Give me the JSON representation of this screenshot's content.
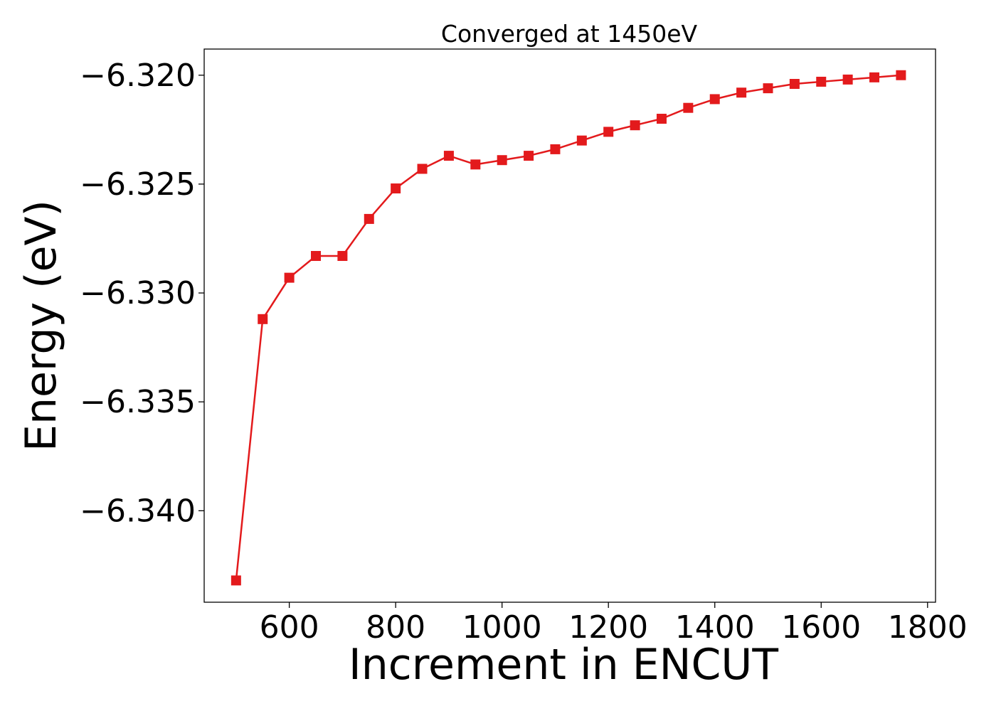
{
  "chart_data": {
    "type": "line",
    "title": "Converged at 1450eV",
    "xlabel": "Increment in ENCUT",
    "ylabel": "Energy (eV)",
    "xlim": [
      440,
      1815
    ],
    "ylim": [
      -6.3442,
      -6.3188
    ],
    "x_ticks": [
      600,
      800,
      1000,
      1200,
      1400,
      1600,
      1800
    ],
    "x_tick_labels": [
      "600",
      "800",
      "1000",
      "1200",
      "1400",
      "1600",
      "1800"
    ],
    "y_ticks": [
      -6.32,
      -6.325,
      -6.33,
      -6.335,
      -6.34
    ],
    "y_tick_labels": [
      "−6.320",
      "−6.325",
      "−6.330",
      "−6.335",
      "−6.340"
    ],
    "grid": false,
    "series": [
      {
        "color": "#e31a1c",
        "marker": "square",
        "x": [
          500,
          550,
          600,
          650,
          700,
          750,
          800,
          850,
          900,
          950,
          1000,
          1050,
          1100,
          1150,
          1200,
          1250,
          1300,
          1350,
          1400,
          1450,
          1500,
          1550,
          1600,
          1650,
          1700,
          1750
        ],
        "values": [
          -6.3432,
          -6.3312,
          -6.3293,
          -6.3283,
          -6.3283,
          -6.3266,
          -6.3252,
          -6.3243,
          -6.3237,
          -6.3241,
          -6.3239,
          -6.3237,
          -6.3234,
          -6.323,
          -6.3226,
          -6.3223,
          -6.322,
          -6.3215,
          -6.3211,
          -6.3208,
          -6.3206,
          -6.3204,
          -6.3203,
          -6.3202,
          -6.3201,
          -6.32
        ]
      }
    ]
  }
}
